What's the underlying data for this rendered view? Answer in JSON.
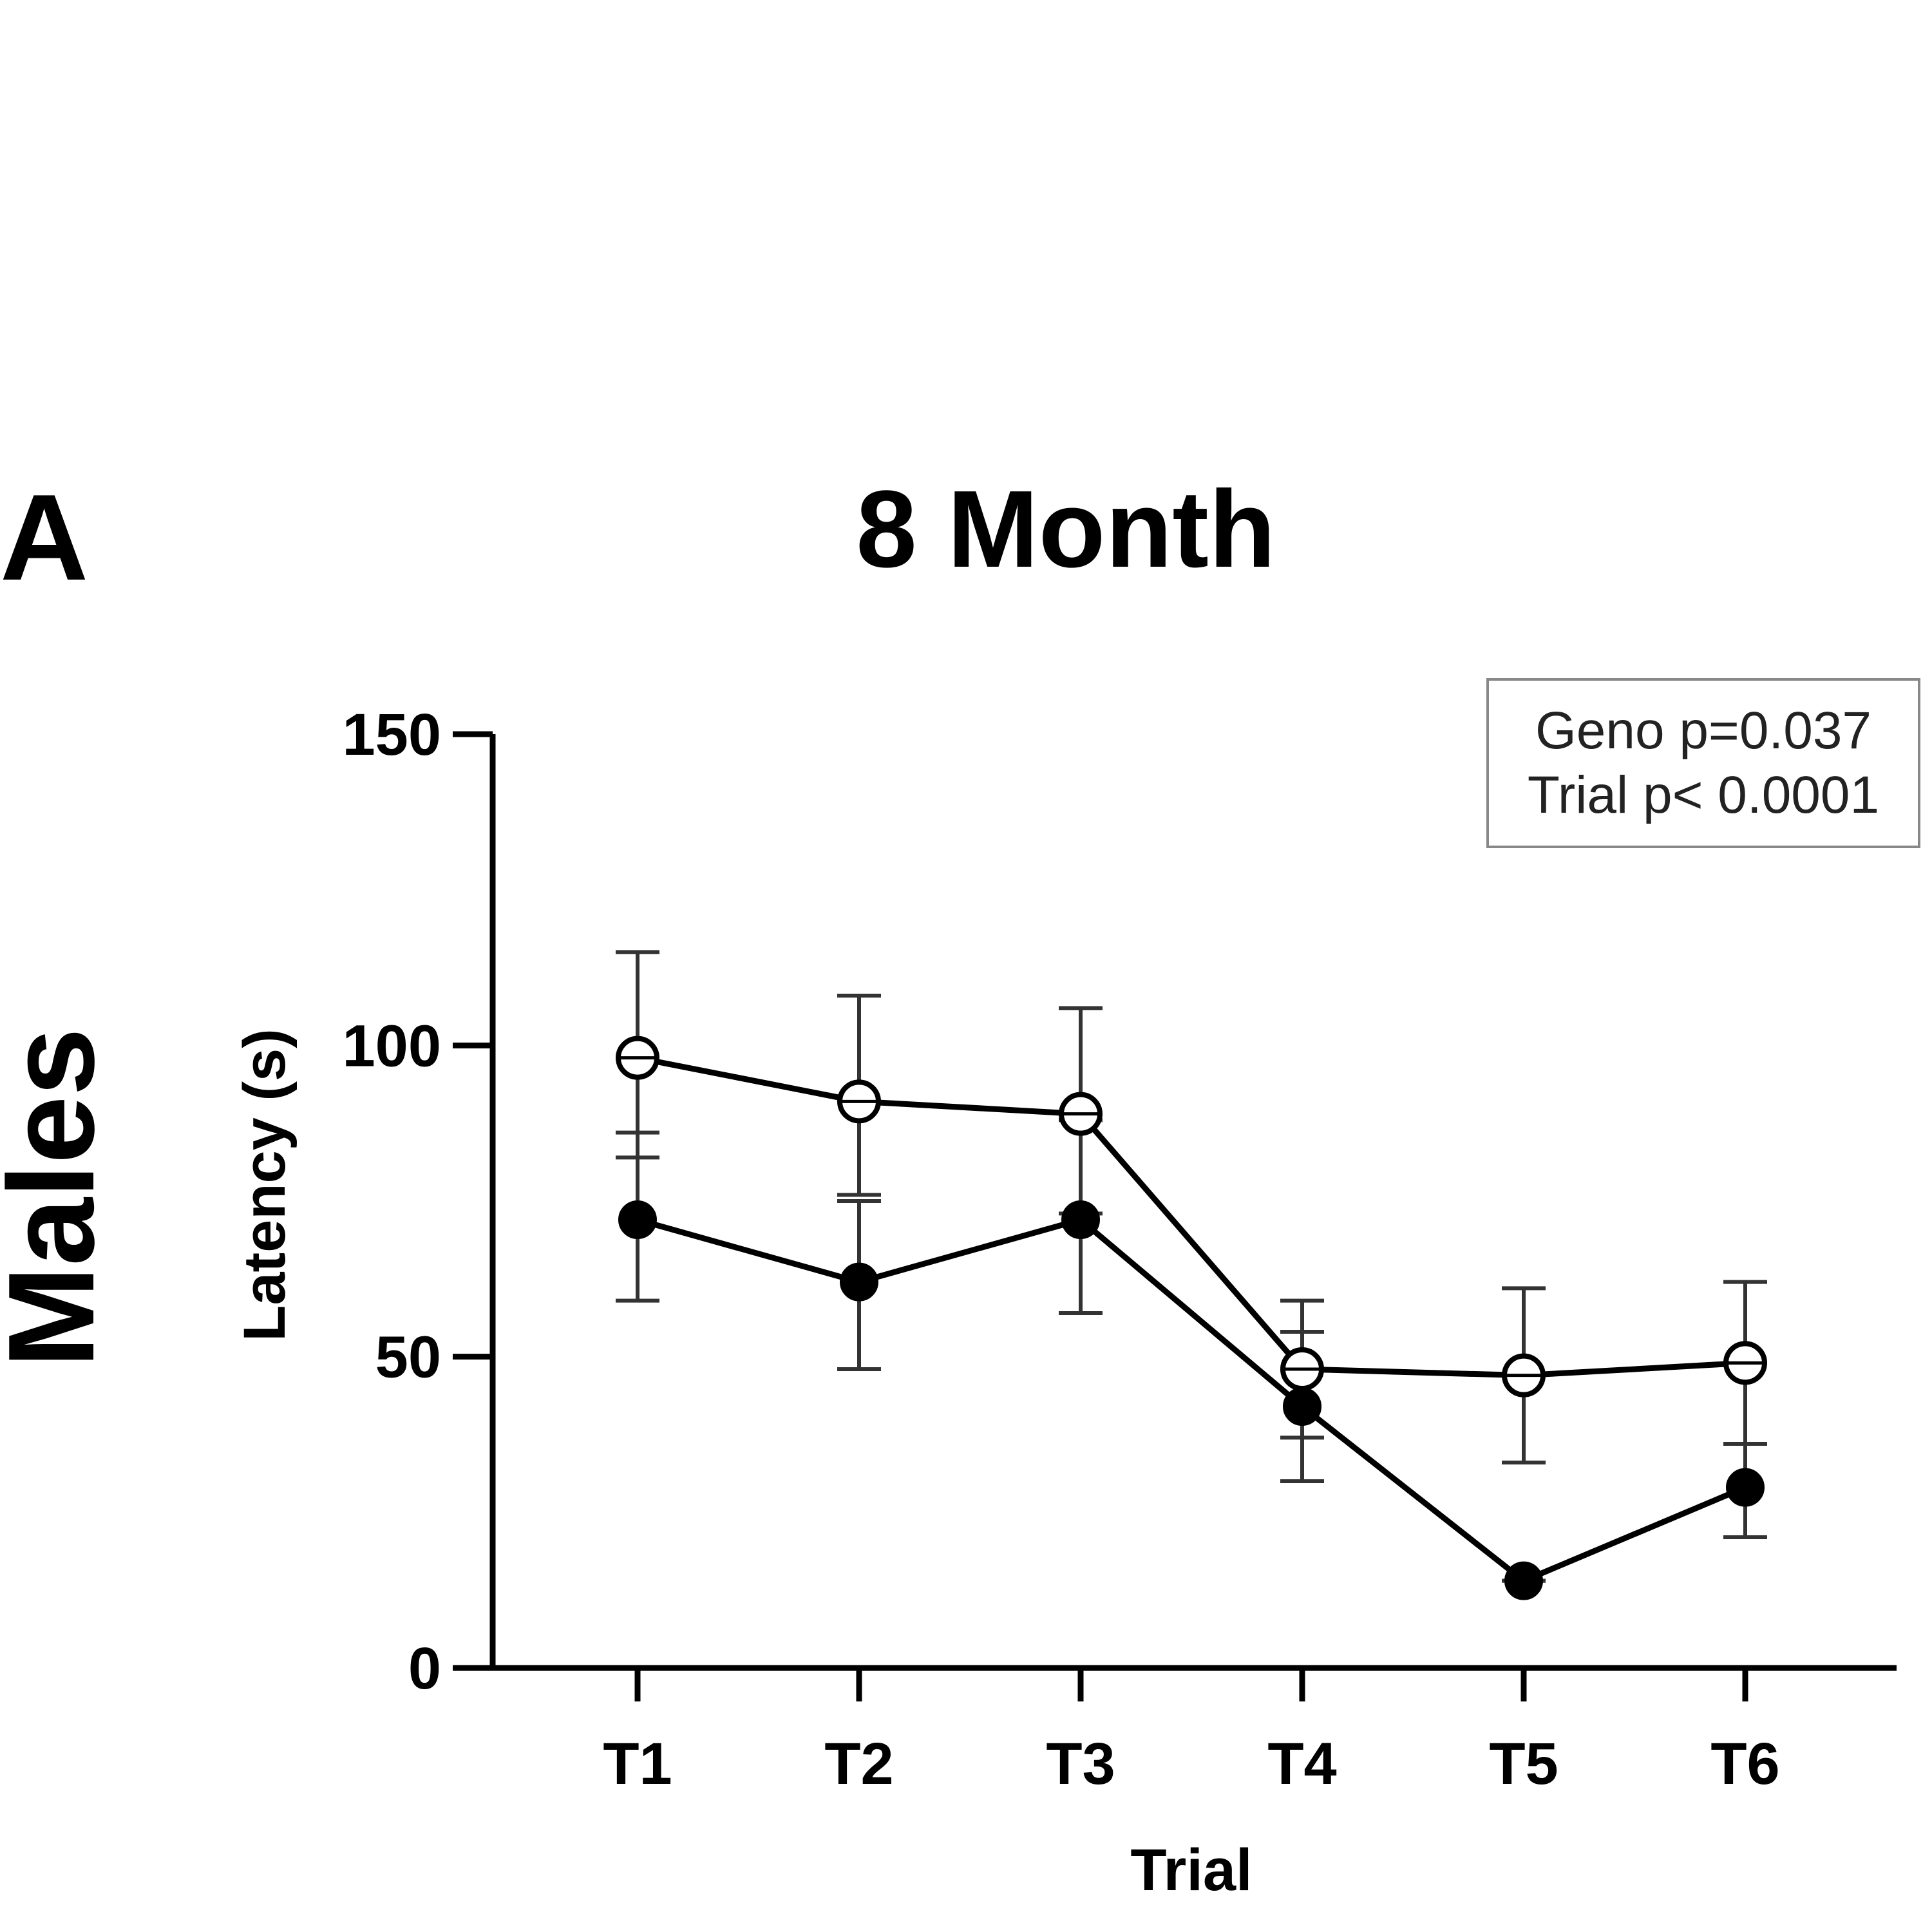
{
  "panel_letter": "A",
  "row_label": "Males",
  "stats": {
    "line1": "Geno p=0.037",
    "line2": "Trial p< 0.0001"
  },
  "chart_data": {
    "type": "line",
    "title": "8 Month",
    "xlabel": "Trial",
    "ylabel": "Latency (s)",
    "categories": [
      "T1",
      "T2",
      "T3",
      "T4",
      "T5",
      "T6"
    ],
    "ylim": [
      0,
      150
    ],
    "yticks": [
      0,
      50,
      100,
      150
    ],
    "ytick_labels": [
      "0",
      "50",
      "100",
      "150"
    ],
    "grid": false,
    "series": [
      {
        "name": "open circles",
        "marker": "open-circle-crosshair",
        "values": [
          98,
          91,
          89,
          48,
          47,
          49
        ],
        "err_upper": [
          115,
          108,
          106,
          59,
          61,
          62
        ],
        "err_lower": [
          82,
          76,
          73,
          37,
          33,
          36
        ]
      },
      {
        "name": "filled circles",
        "marker": "filled-circle",
        "values": [
          72,
          62,
          72,
          42,
          14,
          29
        ],
        "err_upper": [
          86,
          75,
          88,
          54,
          14,
          36
        ],
        "err_lower": [
          59,
          48,
          57,
          30,
          14,
          21
        ]
      }
    ]
  }
}
